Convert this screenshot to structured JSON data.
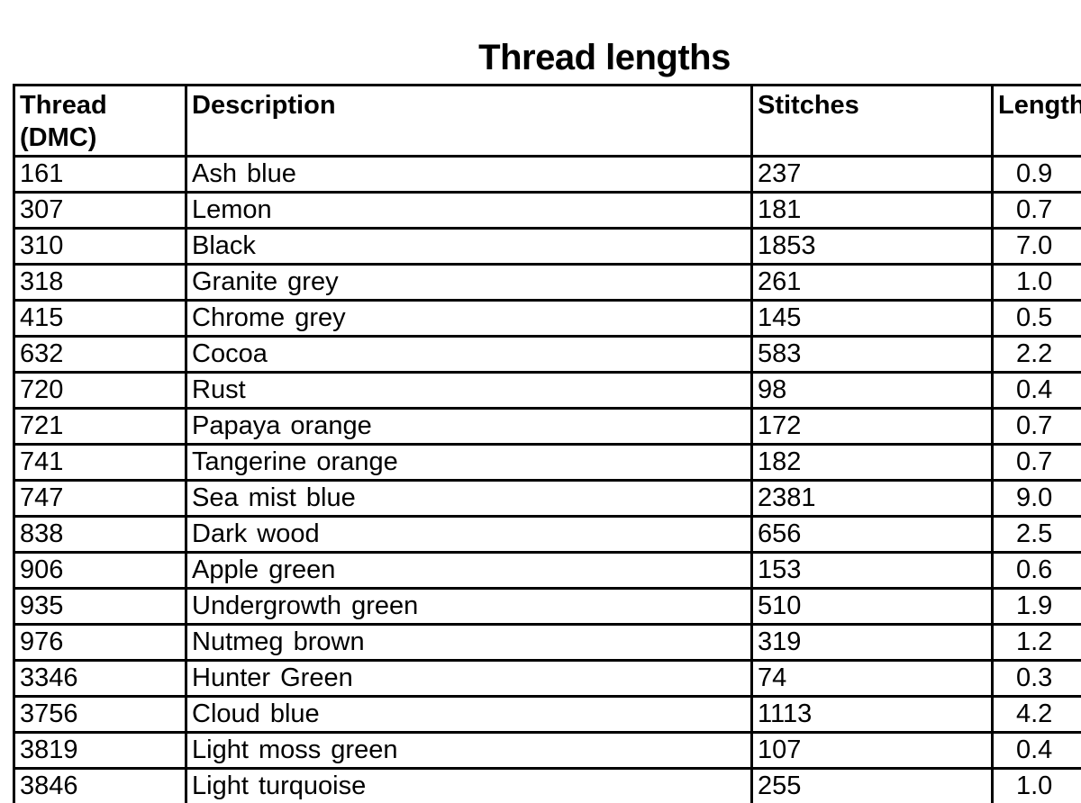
{
  "title": "Thread lengths",
  "colors": {
    "text": "#000000",
    "border": "#000000",
    "background": "#ffffff"
  },
  "table": {
    "columns": [
      "Thread (DMC)",
      "Description",
      "Stitches",
      "Length (m)"
    ],
    "rows": [
      [
        "161",
        "Ash blue",
        "237",
        "0.9"
      ],
      [
        "307",
        "Lemon",
        "181",
        "0.7"
      ],
      [
        "310",
        "Black",
        "1853",
        "7.0"
      ],
      [
        "318",
        "Granite grey",
        "261",
        "1.0"
      ],
      [
        "415",
        "Chrome grey",
        "145",
        "0.5"
      ],
      [
        "632",
        "Cocoa",
        "583",
        "2.2"
      ],
      [
        "720",
        "Rust",
        "98",
        "0.4"
      ],
      [
        "721",
        "Papaya orange",
        "172",
        "0.7"
      ],
      [
        "741",
        "Tangerine orange",
        "182",
        "0.7"
      ],
      [
        "747",
        "Sea mist blue",
        "2381",
        "9.0"
      ],
      [
        "838",
        "Dark wood",
        "656",
        "2.5"
      ],
      [
        "906",
        "Apple green",
        "153",
        "0.6"
      ],
      [
        "935",
        "Undergrowth green",
        "510",
        "1.9"
      ],
      [
        "976",
        "Nutmeg brown",
        "319",
        "1.2"
      ],
      [
        "3346",
        "Hunter Green",
        "74",
        "0.3"
      ],
      [
        "3756",
        "Cloud blue",
        "1113",
        "4.2"
      ],
      [
        "3819",
        "Light moss green",
        "107",
        "0.4"
      ],
      [
        "3846",
        "Light turquoise",
        "255",
        "1.0"
      ]
    ]
  },
  "chart_data": {
    "type": "table",
    "title": "Thread lengths",
    "columns": [
      "Thread (DMC)",
      "Description",
      "Stitches",
      "Length (m)"
    ],
    "rows": [
      [
        "161",
        "Ash blue",
        237,
        0.9
      ],
      [
        "307",
        "Lemon",
        181,
        0.7
      ],
      [
        "310",
        "Black",
        1853,
        7.0
      ],
      [
        "318",
        "Granite grey",
        261,
        1.0
      ],
      [
        "415",
        "Chrome grey",
        145,
        0.5
      ],
      [
        "632",
        "Cocoa",
        583,
        2.2
      ],
      [
        "720",
        "Rust",
        98,
        0.4
      ],
      [
        "721",
        "Papaya orange",
        172,
        0.7
      ],
      [
        "741",
        "Tangerine orange",
        182,
        0.7
      ],
      [
        "747",
        "Sea mist blue",
        2381,
        9.0
      ],
      [
        "838",
        "Dark wood",
        656,
        2.5
      ],
      [
        "906",
        "Apple green",
        153,
        0.6
      ],
      [
        "935",
        "Undergrowth green",
        510,
        1.9
      ],
      [
        "976",
        "Nutmeg brown",
        319,
        1.2
      ],
      [
        "3346",
        "Hunter Green",
        74,
        0.3
      ],
      [
        "3756",
        "Cloud blue",
        1113,
        4.2
      ],
      [
        "3819",
        "Light moss green",
        107,
        0.4
      ],
      [
        "3846",
        "Light turquoise",
        255,
        1.0
      ]
    ]
  }
}
